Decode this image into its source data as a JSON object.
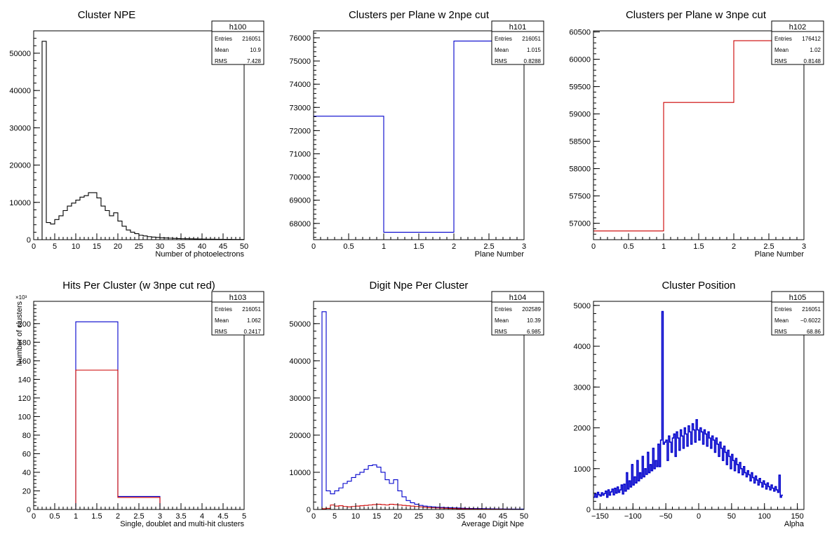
{
  "chart_data": [
    {
      "id": "h100",
      "type": "histogram",
      "title": "Cluster NPE",
      "xlabel": "Number of photoelectrons",
      "ylabel": "",
      "xlim": [
        0,
        50
      ],
      "ylim": [
        0,
        56000
      ],
      "xticks": [
        0,
        5,
        10,
        15,
        20,
        25,
        30,
        35,
        40,
        45,
        50
      ],
      "yticks": [
        0,
        10000,
        20000,
        30000,
        40000,
        50000
      ],
      "stats": {
        "name": "h100",
        "rows": [
          [
            "Entries",
            "216051"
          ],
          [
            "Mean",
            "10.9"
          ],
          [
            "RMS",
            "7.428"
          ]
        ]
      },
      "series": [
        {
          "color": "#000000",
          "bin_width": 1,
          "x_start": 0,
          "values": [
            0,
            0,
            53200,
            4600,
            4200,
            5400,
            6400,
            7800,
            9000,
            9800,
            10600,
            11400,
            11800,
            12600,
            12600,
            11200,
            9000,
            7800,
            6400,
            7200,
            5000,
            3600,
            2600,
            2000,
            1600,
            1200,
            1000,
            800,
            700,
            600,
            500,
            450,
            400,
            350,
            300,
            260,
            240,
            220,
            200,
            180,
            160,
            140,
            120,
            110,
            100,
            90,
            80,
            70,
            60,
            50
          ]
        }
      ]
    },
    {
      "id": "h101",
      "type": "histogram",
      "title": "Clusters per Plane w 2npe cut",
      "xlabel": "Plane Number",
      "ylabel": "",
      "xlim": [
        0,
        3
      ],
      "ylim": [
        67300,
        76300
      ],
      "xticks": [
        0,
        0.5,
        1,
        1.5,
        2,
        2.5,
        3
      ],
      "yticks": [
        68000,
        69000,
        70000,
        71000,
        72000,
        73000,
        74000,
        75000,
        76000
      ],
      "stats": {
        "name": "h101",
        "rows": [
          [
            "Entries",
            "216051"
          ],
          [
            "Mean",
            "1.015"
          ],
          [
            "RMS",
            "0.8288"
          ]
        ]
      },
      "series": [
        {
          "color": "#0000cc",
          "bin_width": 1,
          "x_start": 0,
          "values": [
            72620,
            67620,
            75860
          ]
        }
      ]
    },
    {
      "id": "h102",
      "type": "histogram",
      "title": "Clusters per Plane w 3npe cut",
      "xlabel": "Plane Number",
      "ylabel": "",
      "xlim": [
        0,
        3
      ],
      "ylim": [
        56700,
        60520
      ],
      "xticks": [
        0,
        0.5,
        1,
        1.5,
        2,
        2.5,
        3
      ],
      "yticks": [
        57000,
        57500,
        58000,
        58500,
        59000,
        59500,
        60000,
        60500
      ],
      "stats": {
        "name": "h102",
        "rows": [
          [
            "Entries",
            "176412"
          ],
          [
            "Mean",
            "1.02"
          ],
          [
            "RMS",
            "0.8148"
          ]
        ]
      },
      "series": [
        {
          "color": "#cc0000",
          "bin_width": 1,
          "x_start": 0,
          "values": [
            56860,
            59210,
            60340
          ]
        }
      ]
    },
    {
      "id": "h103",
      "type": "histogram",
      "title": "Hits Per Cluster (w 3npe cut red)",
      "xlabel": "Single, doublet and multi-hit clusters",
      "ylabel": "Number of clusters",
      "yscale_label": "×10³",
      "xlim": [
        0,
        5
      ],
      "ylim": [
        0,
        224
      ],
      "xticks": [
        0,
        0.5,
        1,
        1.5,
        2,
        2.5,
        3,
        3.5,
        4,
        4.5,
        5
      ],
      "yticks": [
        0,
        20,
        40,
        60,
        80,
        100,
        120,
        140,
        160,
        180,
        200
      ],
      "stats": {
        "name": "h103",
        "rows": [
          [
            "Entries",
            "216051"
          ],
          [
            "Mean",
            "1.062"
          ],
          [
            "RMS",
            "0.2417"
          ]
        ]
      },
      "series": [
        {
          "color": "#0000cc",
          "bin_width": 1,
          "x_start": 0,
          "values": [
            0,
            202,
            14,
            0,
            0
          ]
        },
        {
          "color": "#cc0000",
          "bin_width": 1,
          "x_start": 0,
          "values": [
            0,
            150,
            13,
            0,
            0
          ]
        }
      ]
    },
    {
      "id": "h104",
      "type": "histogram",
      "title": "Digit Npe Per Cluster",
      "xlabel": "Average Digit Npe",
      "ylabel": "",
      "xlim": [
        0,
        50
      ],
      "ylim": [
        0,
        56000
      ],
      "xticks": [
        0,
        5,
        10,
        15,
        20,
        25,
        30,
        35,
        40,
        45,
        50
      ],
      "yticks": [
        0,
        10000,
        20000,
        30000,
        40000,
        50000
      ],
      "stats": {
        "name": "h104",
        "rows": [
          [
            "Entries",
            "202589"
          ],
          [
            "Mean",
            "10.39"
          ],
          [
            "RMS",
            "6.985"
          ]
        ]
      },
      "series": [
        {
          "color": "#0000cc",
          "bin_width": 1,
          "x_start": 0,
          "values": [
            0,
            0,
            53200,
            5000,
            4200,
            5000,
            5800,
            7000,
            7600,
            8600,
            9400,
            10000,
            10800,
            11800,
            12000,
            11400,
            10000,
            8000,
            7000,
            8000,
            5000,
            3400,
            2400,
            1800,
            1400,
            1100,
            900,
            800,
            700,
            600,
            550,
            500,
            460,
            420,
            380,
            340,
            300,
            280,
            260,
            240,
            220,
            200,
            180,
            160,
            150,
            140,
            130,
            120,
            110,
            100
          ]
        },
        {
          "color": "#cc0000",
          "bin_width": 1,
          "x_start": 0,
          "values": [
            0,
            0,
            200,
            300,
            1200,
            900,
            1000,
            800,
            700,
            800,
            900,
            1000,
            1100,
            1200,
            1300,
            1400,
            1300,
            1200,
            1400,
            1300,
            1200,
            1100,
            1000,
            900,
            800,
            700,
            600,
            500,
            450,
            400,
            360,
            320,
            280,
            240,
            200,
            180,
            160,
            140,
            120,
            100,
            90,
            80,
            70,
            60,
            50,
            40,
            30,
            20,
            10,
            0
          ]
        }
      ]
    },
    {
      "id": "h105",
      "type": "histogram",
      "title": "Cluster Position",
      "xlabel": "Alpha",
      "ylabel": "",
      "xlim": [
        -160,
        160
      ],
      "ylim": [
        0,
        5100
      ],
      "xticks": [
        -150,
        -100,
        -50,
        0,
        50,
        100,
        150
      ],
      "yticks": [
        0,
        1000,
        2000,
        3000,
        4000,
        5000
      ],
      "stats": {
        "name": "h105",
        "rows": [
          [
            "Entries",
            "216051"
          ],
          [
            "Mean",
            "−0.6022"
          ],
          [
            "RMS",
            "68.86"
          ]
        ]
      },
      "series": [
        {
          "color": "#0000cc",
          "bin_width": 2,
          "x_start": -160,
          "values": [
            300,
            380,
            300,
            420,
            360,
            330,
            410,
            350,
            390,
            450,
            300,
            480,
            350,
            430,
            500,
            360,
            520,
            400,
            550,
            420,
            480,
            600,
            380,
            620,
            450,
            900,
            500,
            700,
            550,
            1100,
            600,
            800,
            650,
            1200,
            700,
            900,
            760,
            1300,
            800,
            1000,
            860,
            1400,
            900,
            1100,
            950,
            1500,
            1000,
            1200,
            1050,
            1600,
            1050,
            1700,
            4850,
            1600,
            1650,
            1700,
            1200,
            1800,
            1650,
            1400,
            1750,
            1850,
            1300,
            1900,
            1750,
            1450,
            1950,
            1800,
            1500,
            2000,
            1850,
            1550,
            2050,
            1900,
            1600,
            2100,
            1950,
            1650,
            2200,
            1950,
            1700,
            2000,
            1900,
            1600,
            1950,
            1850,
            1550,
            1900,
            1750,
            1500,
            1800,
            1700,
            1400,
            1750,
            1600,
            1300,
            1650,
            1500,
            1200,
            1550,
            1400,
            1100,
            1450,
            1300,
            1000,
            1350,
            1200,
            950,
            1250,
            1100,
            900,
            1150,
            1000,
            850,
            1050,
            900,
            800,
            950,
            850,
            700,
            900,
            780,
            650,
            820,
            720,
            600,
            760,
            660,
            550,
            700,
            620,
            500,
            650,
            560,
            480,
            600,
            520,
            450,
            560,
            480,
            420,
            840,
            300,
            350
          ]
        }
      ]
    }
  ]
}
